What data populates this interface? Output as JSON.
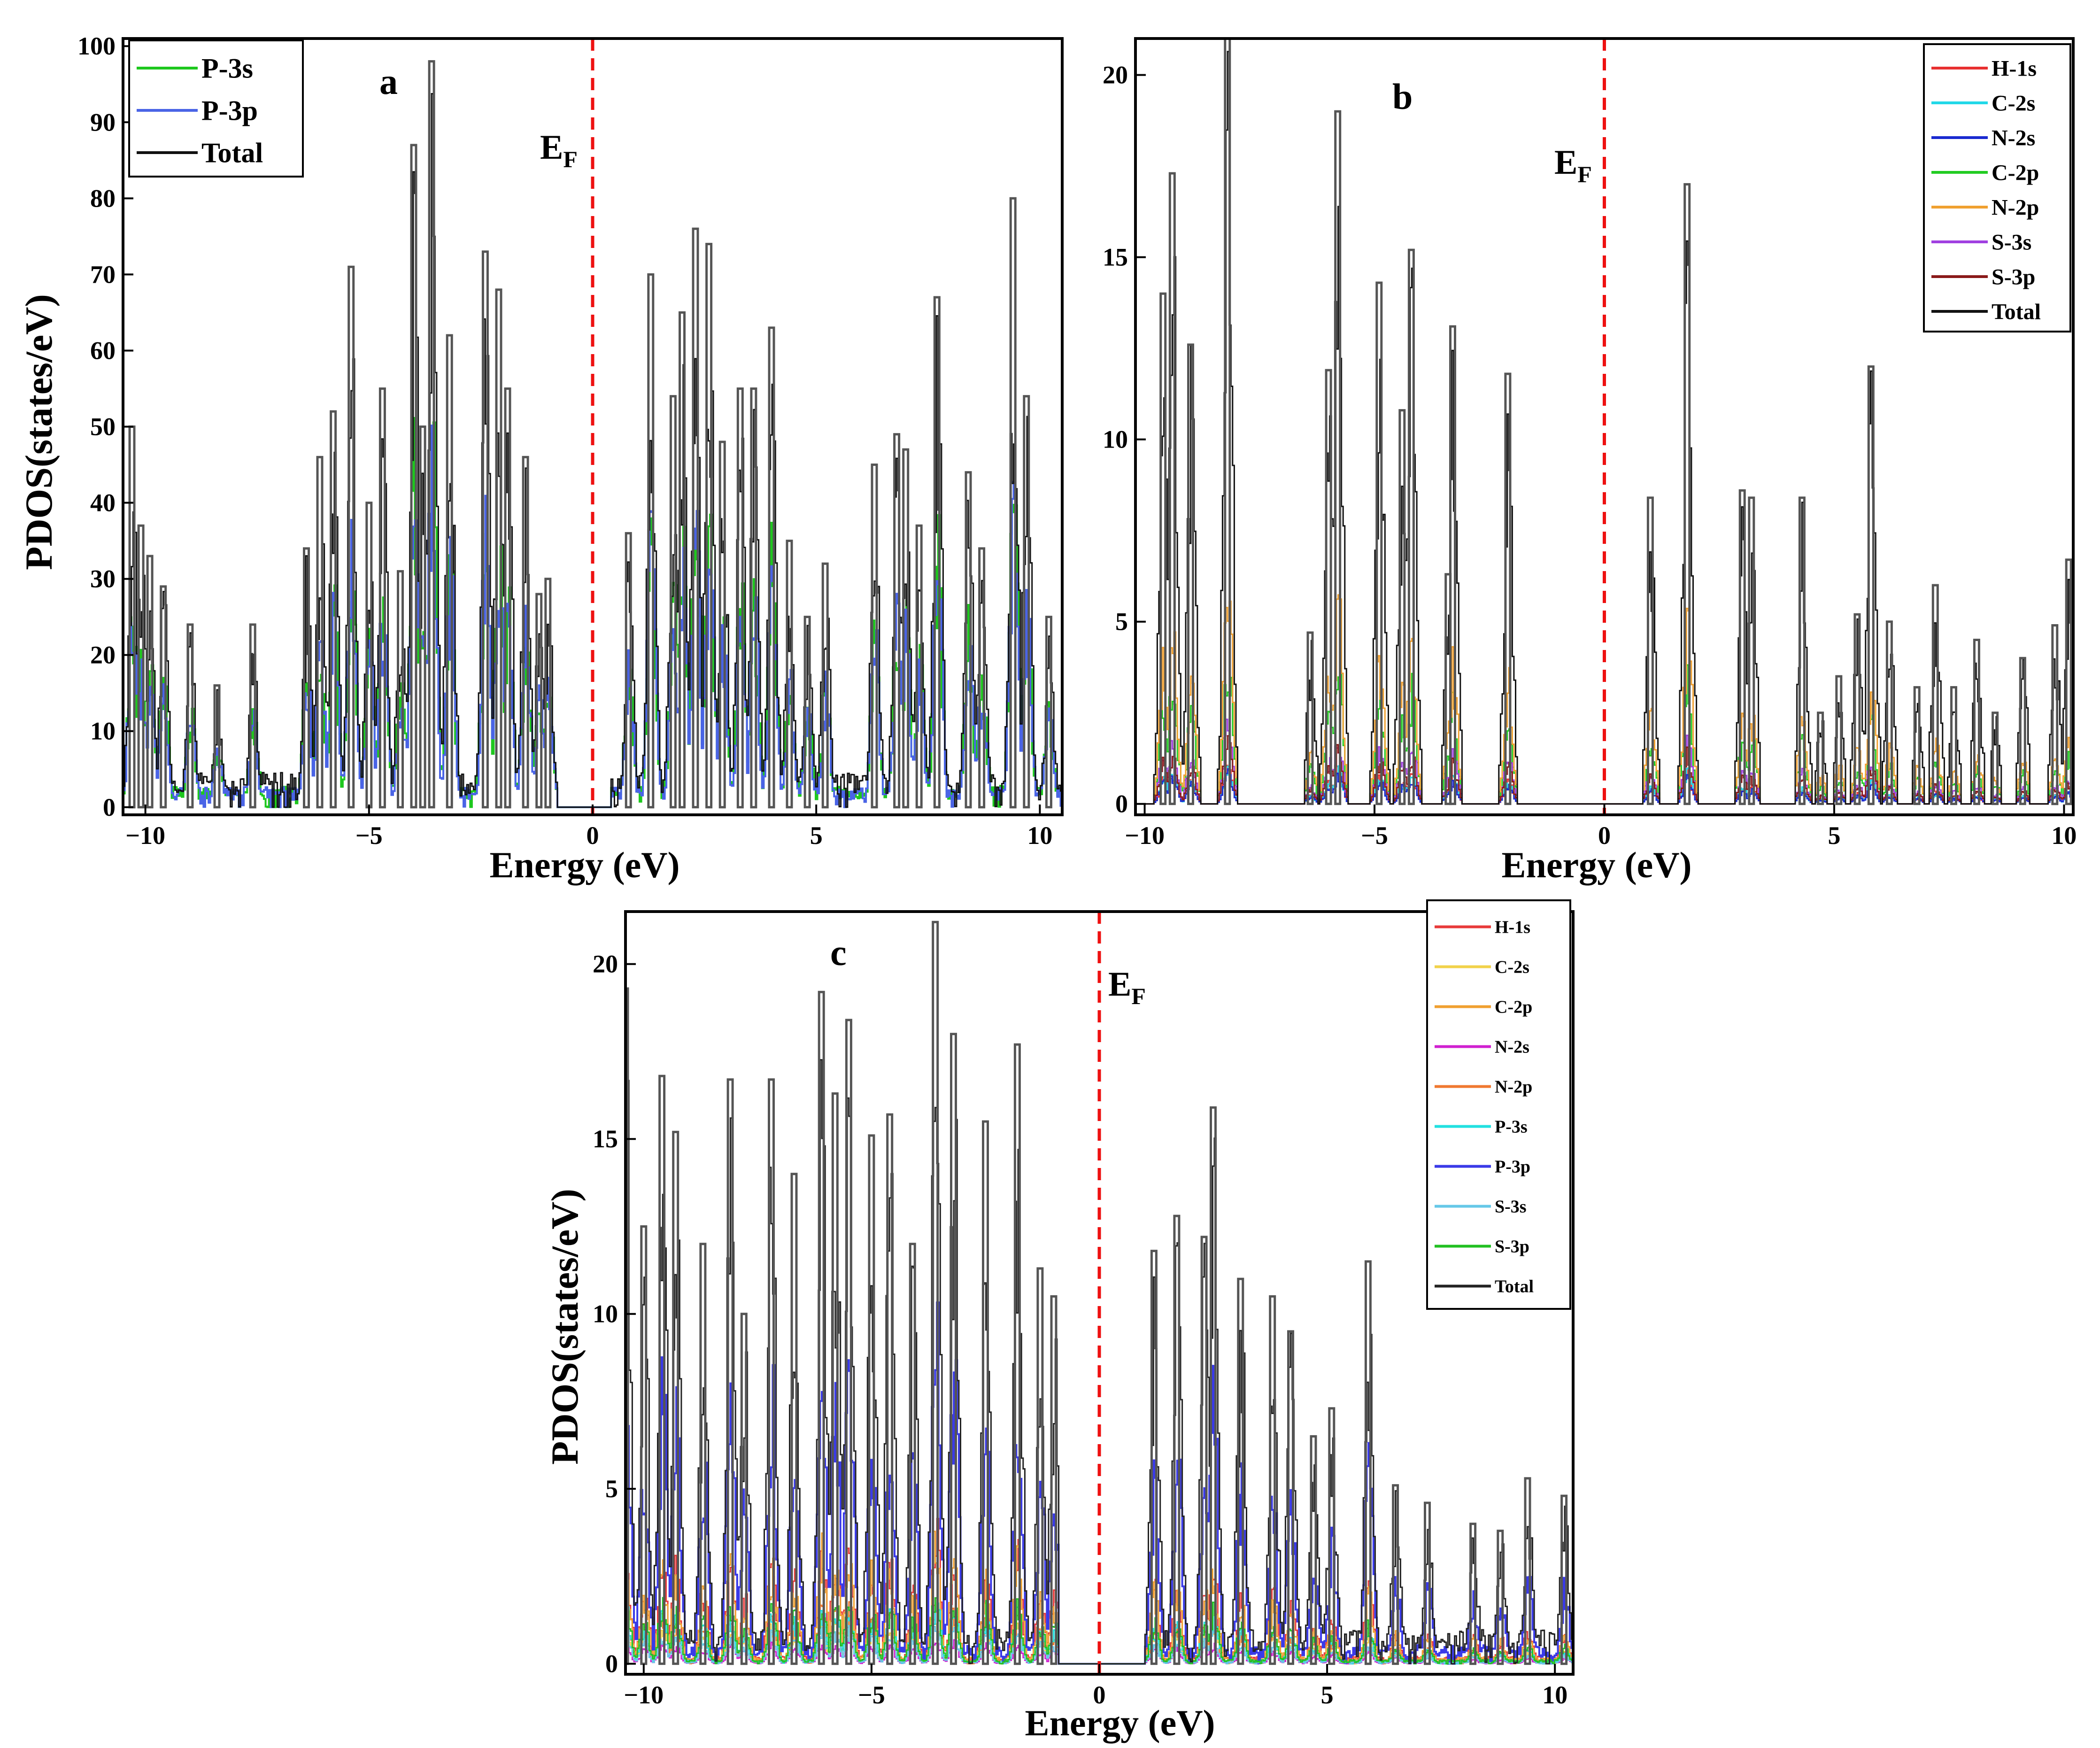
{
  "figure": {
    "xlabel": "Energy (eV)",
    "ylabel": "PDOS(states/eV)",
    "fermi_label": "E",
    "fermi_sub": "F"
  },
  "chart_data": [
    {
      "id": "a",
      "type": "line",
      "title": "a",
      "xlabel": "Energy (eV)",
      "ylabel": "PDOS(states/eV)",
      "xlim": [
        -10.5,
        10.5
      ],
      "ylim": [
        -1,
        101
      ],
      "xticks": [
        -10,
        -5,
        0,
        5,
        10
      ],
      "xtick_labels": [
        "−10",
        "−5",
        "0",
        "5",
        "10"
      ],
      "yticks": [
        0,
        10,
        20,
        30,
        40,
        50,
        60,
        70,
        80,
        90,
        100
      ],
      "ytick_labels": [
        "0",
        "10",
        "20",
        "30",
        "40",
        "50",
        "60",
        "70",
        "80",
        "90",
        "100"
      ],
      "legend_position": "top-left",
      "fermi_energy": 0,
      "bandgap": [
        -0.8,
        0.4
      ],
      "series": [
        {
          "name": "P-3s",
          "color": "#1ec81e",
          "width": 4,
          "ratio": 0.62,
          "dense": true
        },
        {
          "name": "P-3p",
          "color": "#4a64e6",
          "width": 4,
          "ratio": 0.58,
          "dense": true
        },
        {
          "name": "Total",
          "color": "#111111",
          "width": 3,
          "ratio": 1.0,
          "dense": true
        }
      ],
      "peaks": [
        [
          -10.3,
          50
        ],
        [
          -10.1,
          37
        ],
        [
          -9.9,
          33
        ],
        [
          -9.6,
          29
        ],
        [
          -9.0,
          24
        ],
        [
          -8.4,
          16
        ],
        [
          -7.6,
          24
        ],
        [
          -6.4,
          34
        ],
        [
          -6.1,
          46
        ],
        [
          -5.8,
          52
        ],
        [
          -5.4,
          71
        ],
        [
          -5.0,
          40
        ],
        [
          -4.7,
          55
        ],
        [
          -4.3,
          31
        ],
        [
          -4.0,
          87
        ],
        [
          -3.8,
          50
        ],
        [
          -3.6,
          98
        ],
        [
          -3.2,
          62
        ],
        [
          -2.4,
          73
        ],
        [
          -2.1,
          68
        ],
        [
          -1.9,
          55
        ],
        [
          -1.5,
          46
        ],
        [
          -1.2,
          28
        ],
        [
          -1.0,
          30
        ],
        [
          0.8,
          36
        ],
        [
          1.3,
          70
        ],
        [
          1.8,
          54
        ],
        [
          2.0,
          65
        ],
        [
          2.3,
          76
        ],
        [
          2.6,
          74
        ],
        [
          2.9,
          48
        ],
        [
          3.3,
          55
        ],
        [
          3.6,
          55
        ],
        [
          4.0,
          63
        ],
        [
          4.4,
          35
        ],
        [
          4.8,
          25
        ],
        [
          5.2,
          32
        ],
        [
          6.3,
          45
        ],
        [
          6.8,
          49
        ],
        [
          7.0,
          47
        ],
        [
          7.3,
          37
        ],
        [
          7.7,
          67
        ],
        [
          8.4,
          44
        ],
        [
          8.7,
          34
        ],
        [
          9.4,
          80
        ],
        [
          9.7,
          54
        ],
        [
          10.2,
          25
        ]
      ]
    },
    {
      "id": "b",
      "type": "line",
      "title": "b",
      "xlabel": "Energy (eV)",
      "ylabel": "",
      "xlim": [
        -10.2,
        10.2
      ],
      "ylim": [
        -0.3,
        21
      ],
      "xticks": [
        -10,
        -5,
        0,
        5,
        10
      ],
      "xtick_labels": [
        "−10",
        "−5",
        "0",
        "5",
        "10"
      ],
      "yticks": [
        0,
        5,
        10,
        15,
        20
      ],
      "ytick_labels": [
        "0",
        "5",
        "10",
        "15",
        "20"
      ],
      "legend_position": "top-right",
      "fermi_energy": 0,
      "series": [
        {
          "name": "H-1s",
          "color": "#e83030",
          "width": 3,
          "ratio": 0.06
        },
        {
          "name": "C-2s",
          "color": "#22d8e8",
          "width": 3,
          "ratio": 0.06
        },
        {
          "name": "N-2s",
          "color": "#1a2ad0",
          "width": 3,
          "ratio": 0.05
        },
        {
          "name": "C-2p",
          "color": "#22cc22",
          "width": 3,
          "ratio": 0.24
        },
        {
          "name": "N-2p",
          "color": "#f0a030",
          "width": 3,
          "ratio": 0.34
        },
        {
          "name": "S-3s",
          "color": "#a040e0",
          "width": 3,
          "ratio": 0.12
        },
        {
          "name": "S-3p",
          "color": "#8a1a1a",
          "width": 3,
          "ratio": 0.1
        },
        {
          "name": "Total",
          "color": "#111111",
          "width": 3,
          "ratio": 1.0
        }
      ],
      "peaks": [
        [
          -9.6,
          14
        ],
        [
          -9.4,
          17.3
        ],
        [
          -9.0,
          12.6
        ],
        [
          -8.2,
          21
        ],
        [
          -6.4,
          4.7
        ],
        [
          -6.0,
          11.9
        ],
        [
          -5.8,
          19
        ],
        [
          -4.9,
          14.3
        ],
        [
          -4.4,
          10.8
        ],
        [
          -4.2,
          15.2
        ],
        [
          -3.3,
          13.1
        ],
        [
          -3.4,
          6.3
        ],
        [
          -2.1,
          11.8
        ],
        [
          1.0,
          8.4
        ],
        [
          1.8,
          17.0
        ],
        [
          3.0,
          8.6
        ],
        [
          3.2,
          8.4
        ],
        [
          4.3,
          8.4
        ],
        [
          4.7,
          2.5
        ],
        [
          5.1,
          3.5
        ],
        [
          5.5,
          5.2
        ],
        [
          5.8,
          12.0
        ],
        [
          6.2,
          5.0
        ],
        [
          6.8,
          3.2
        ],
        [
          7.2,
          6.0
        ],
        [
          7.6,
          3.2
        ],
        [
          8.1,
          4.5
        ],
        [
          8.5,
          2.5
        ],
        [
          9.1,
          4.0
        ],
        [
          9.8,
          4.9
        ],
        [
          10.1,
          6.7
        ]
      ]
    },
    {
      "id": "c",
      "type": "line",
      "title": "c",
      "xlabel": "Energy (eV)",
      "ylabel": "PDOS(states/eV)",
      "xlim": [
        -10.4,
        10.4
      ],
      "ylim": [
        -0.3,
        21.5
      ],
      "xticks": [
        -10,
        -5,
        0,
        5,
        10
      ],
      "xtick_labels": [
        "−10",
        "−5",
        "0",
        "5",
        "10"
      ],
      "yticks": [
        0,
        5,
        10,
        15,
        20
      ],
      "ytick_labels": [
        "0",
        "5",
        "10",
        "15",
        "20"
      ],
      "legend_position": "top-right",
      "fermi_energy": 0,
      "bandgap": [
        -0.9,
        1.0
      ],
      "series": [
        {
          "name": "H-1s",
          "color": "#e83a3a",
          "width": 3,
          "ratio": 0.22,
          "dense": true
        },
        {
          "name": "C-2s",
          "color": "#f2d24a",
          "width": 3,
          "ratio": 0.08,
          "dense": true
        },
        {
          "name": "C-2p",
          "color": "#f0a030",
          "width": 3,
          "ratio": 0.2,
          "dense": true
        },
        {
          "name": "N-2s",
          "color": "#d020d0",
          "width": 3,
          "ratio": 0.04,
          "dense": true
        },
        {
          "name": "N-2p",
          "color": "#f07830",
          "width": 3,
          "ratio": 0.1,
          "dense": true
        },
        {
          "name": "P-3s",
          "color": "#22e0e0",
          "width": 3,
          "ratio": 0.1,
          "dense": true
        },
        {
          "name": "P-3p",
          "color": "#3a3ae8",
          "width": 4,
          "ratio": 0.55,
          "dense": true
        },
        {
          "name": "S-3s",
          "color": "#66c8e8",
          "width": 3,
          "ratio": 0.06,
          "dense": true
        },
        {
          "name": "S-3p",
          "color": "#22c022",
          "width": 3,
          "ratio": 0.12,
          "dense": true
        },
        {
          "name": "Total",
          "color": "#222222",
          "width": 3,
          "ratio": 1.0,
          "dense": true
        }
      ],
      "peaks": [
        [
          -10.4,
          19.3
        ],
        [
          -10.0,
          12.5
        ],
        [
          -9.6,
          16.8
        ],
        [
          -9.3,
          15.2
        ],
        [
          -8.7,
          12.0
        ],
        [
          -8.1,
          16.7
        ],
        [
          -7.8,
          10.0
        ],
        [
          -7.2,
          16.7
        ],
        [
          -6.7,
          14.0
        ],
        [
          -6.1,
          19.2
        ],
        [
          -5.8,
          16.3
        ],
        [
          -5.5,
          18.4
        ],
        [
          -5.0,
          15.1
        ],
        [
          -4.6,
          15.7
        ],
        [
          -4.1,
          12.0
        ],
        [
          -3.6,
          21.2
        ],
        [
          -3.2,
          18.0
        ],
        [
          -2.5,
          15.5
        ],
        [
          -1.8,
          17.7
        ],
        [
          -1.3,
          11.3
        ],
        [
          -1.0,
          10.5
        ],
        [
          1.2,
          11.8
        ],
        [
          1.7,
          12.8
        ],
        [
          2.3,
          12.2
        ],
        [
          2.5,
          15.9
        ],
        [
          3.1,
          11.0
        ],
        [
          3.8,
          10.5
        ],
        [
          4.2,
          9.5
        ],
        [
          4.7,
          6.5
        ],
        [
          5.1,
          7.3
        ],
        [
          5.9,
          11.5
        ],
        [
          6.5,
          5.1
        ],
        [
          7.2,
          4.6
        ],
        [
          8.2,
          4.0
        ],
        [
          8.8,
          3.8
        ],
        [
          9.4,
          5.3
        ],
        [
          10.2,
          4.8
        ]
      ]
    }
  ]
}
